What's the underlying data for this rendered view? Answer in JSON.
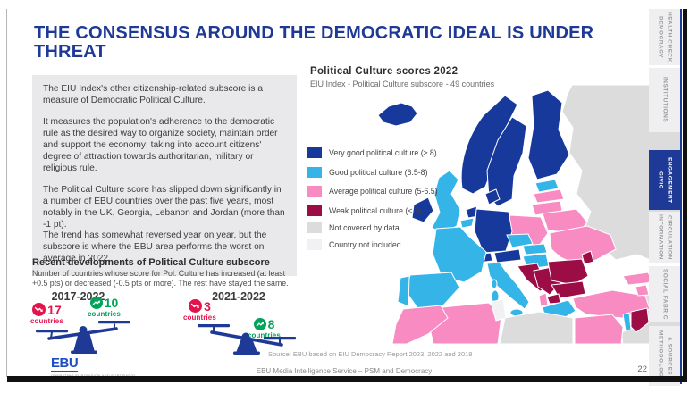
{
  "theme": {
    "brand_blue": "#1e3a96",
    "logo_blue": "#1d4fc4",
    "accent_red": "#e5134c",
    "accent_green": "#00a357"
  },
  "title": "THE CONSENSUS AROUND THE DEMOCRATIC IDEAL IS UNDER THREAT",
  "intro": {
    "paragraphs": [
      {
        "text": "The EIU Index's other citizenship-related subscore is a measure of Democratic Political Culture.",
        "tight": false
      },
      {
        "text": "It measures the population's adherence to the democratic rule as the desired way to organize society, maintain order and support the economy; taking into account citizens' degree of attraction towards authoritarian, military or religious rule.",
        "tight": false
      },
      {
        "text": "The Political Culture score has slipped down significantly in a number of EBU countries over the past five years, most notably in the UK, Georgia, Lebanon and Jordan (more than -1 pt).",
        "tight": false
      },
      {
        "text": "The trend has somewhat reversed year on year, but the subscore is where the EBU area performs the worst on average in 2022.",
        "tight": true
      }
    ]
  },
  "map": {
    "title": "Political Culture scores 2022",
    "subtitle": "EIU Index - Political Culture subscore - 49 countries",
    "source": "Source: EBU based on EIU Democracy Report 2023, 2022 and 2018",
    "colors": {
      "very_good": "#16399b",
      "good": "#35b4e8",
      "average": "#f78bc2",
      "weak": "#9c0d45",
      "not_covered": "#dcdcdc",
      "not_included": "#f1f1f3"
    },
    "legend": [
      {
        "key": "very_good",
        "label": "Very good political culture (≥ 8)"
      },
      {
        "key": "good",
        "label": "Good political culture (6.5-8)"
      },
      {
        "key": "average",
        "label": "Average political culture (5-6.5)"
      },
      {
        "key": "weak",
        "label": "Weak political culture (< 5)"
      },
      {
        "key": "not_covered",
        "label": "Not covered by data"
      },
      {
        "key": "not_included",
        "label": "Country not included"
      }
    ],
    "countries": {
      "iceland": "very_good",
      "norway": "very_good",
      "sweden": "very_good",
      "finland": "very_good",
      "denmark": "very_good",
      "ireland": "very_good",
      "netherlands": "very_good",
      "germany": "very_good",
      "switzerland": "very_good",
      "austria": "very_good",
      "uk": "good",
      "belgium": "good",
      "france": "good",
      "spain": "good",
      "portugal": "good",
      "italy": "good",
      "sicily": "good",
      "sardinia": "good",
      "corsica": "good",
      "czechia": "good",
      "slovakia": "good",
      "hungary": "good",
      "estonia": "good",
      "greece": "good",
      "greek-islands": "good",
      "crete": "good",
      "cyprus": "good",
      "israel": "good",
      "latvia": "average",
      "lithuania": "average",
      "belarus": "average",
      "poland": "average",
      "ukraine": "average",
      "turkey": "average",
      "georgia": "average",
      "armenia": "average",
      "albania": "average",
      "morocco": "average",
      "algeria": "average",
      "egypt": "average",
      "moldova": "weak",
      "romania": "weak",
      "bulgaria": "weak",
      "serbia-bosnia": "weak",
      "croatia-slovenia": "weak",
      "north-macedonia": "weak",
      "azerbaijan": "weak",
      "jordan": "weak",
      "russia": "not_covered",
      "middle-east": "not_covered",
      "libya": "not_covered",
      "tunisia": "not_included"
    }
  },
  "developments": {
    "heading": "Recent developments of Political Culture subscore",
    "subtext": "Number of countries whose score for Pol. Culture has increased (at least +0.5 pts) or decreased (-0.5 pts or more). The rest have stayed the same.",
    "scales": [
      {
        "period": "2017-2022",
        "decreased": {
          "count": "17",
          "label": "countries"
        },
        "increased": {
          "count": "10",
          "label": "countries"
        },
        "tilt": "decreased-heavier"
      },
      {
        "period": "2021-2022",
        "decreased": {
          "count": "3",
          "label": "countries"
        },
        "increased": {
          "count": "8",
          "label": "countries"
        },
        "tilt": "increased-heavier"
      }
    ]
  },
  "footer": {
    "logo": "EBU",
    "logo_tagline": "OPERATING EUROVISION AND EURORADIO",
    "text": "EBU Media Intelligence Service – PSM and Democracy",
    "page": "22"
  },
  "sidebar": {
    "tabs": [
      {
        "id": "democracy-health-check",
        "label": "DEMOCRACY\nHEALTH CHECK",
        "active": false
      },
      {
        "id": "institutions",
        "label": "INSTITUTIONS",
        "active": false
      },
      {
        "id": "civic-engagement",
        "label": "CIVIC\nENGAGEMENT",
        "active": true
      },
      {
        "id": "information-circulation",
        "label": "INFORMATION\nCIRCULATION",
        "active": false
      },
      {
        "id": "social-fabric",
        "label": "SOCIAL FABRIC",
        "active": false
      },
      {
        "id": "methodology-sources",
        "label": "METHODOLOGY\n& SOURCES",
        "active": false
      }
    ]
  }
}
